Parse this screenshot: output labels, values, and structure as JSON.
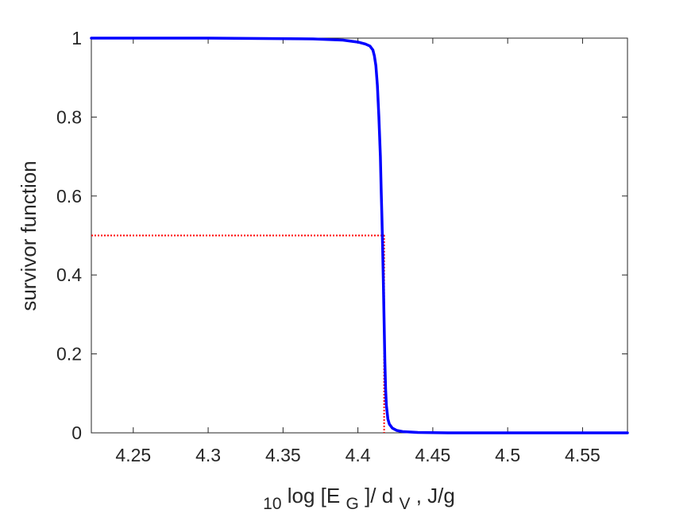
{
  "chart_data": {
    "type": "line",
    "title": "",
    "xlabel": {
      "sub_prefix": "10",
      "part1": "log [E",
      "sub_g": "G",
      "part2": "]/ d",
      "sub_v": "V",
      "part3": ", J/g"
    },
    "ylabel": "survivor function",
    "xlim": [
      4.222,
      4.58
    ],
    "ylim": [
      0,
      1
    ],
    "xticks": [
      4.25,
      4.3,
      4.35,
      4.4,
      4.45,
      4.5,
      4.55
    ],
    "xtick_labels": [
      "4.25",
      "4.3",
      "4.35",
      "4.4",
      "4.45",
      "4.5",
      "4.55"
    ],
    "yticks": [
      0,
      0.2,
      0.4,
      0.6,
      0.8,
      1
    ],
    "ytick_labels": [
      "0",
      "0.2",
      "0.4",
      "0.6",
      "0.8",
      "1"
    ],
    "grid": false,
    "series": [
      {
        "color": "#0000ff",
        "style": "solid",
        "x": [
          4.222,
          4.3,
          4.37,
          4.39,
          4.4,
          4.405,
          4.408,
          4.41,
          4.411,
          4.412,
          4.413,
          4.414,
          4.415,
          4.4155,
          4.416,
          4.4165,
          4.417,
          4.4175,
          4.418,
          4.4185,
          4.419,
          4.42,
          4.421,
          4.423,
          4.426,
          4.43,
          4.44,
          4.46,
          4.5,
          4.58
        ],
        "y": [
          1.0,
          1.0,
          0.998,
          0.995,
          0.99,
          0.985,
          0.98,
          0.97,
          0.955,
          0.93,
          0.88,
          0.8,
          0.7,
          0.62,
          0.55,
          0.47,
          0.38,
          0.28,
          0.18,
          0.11,
          0.07,
          0.035,
          0.022,
          0.012,
          0.006,
          0.003,
          0.001,
          0.0,
          0.0,
          0.0
        ]
      },
      {
        "color": "#ff0000",
        "style": "dotted",
        "x": [
          4.222,
          4.4175,
          4.4175
        ],
        "y": [
          0.5,
          0.5,
          0.0
        ]
      }
    ]
  }
}
